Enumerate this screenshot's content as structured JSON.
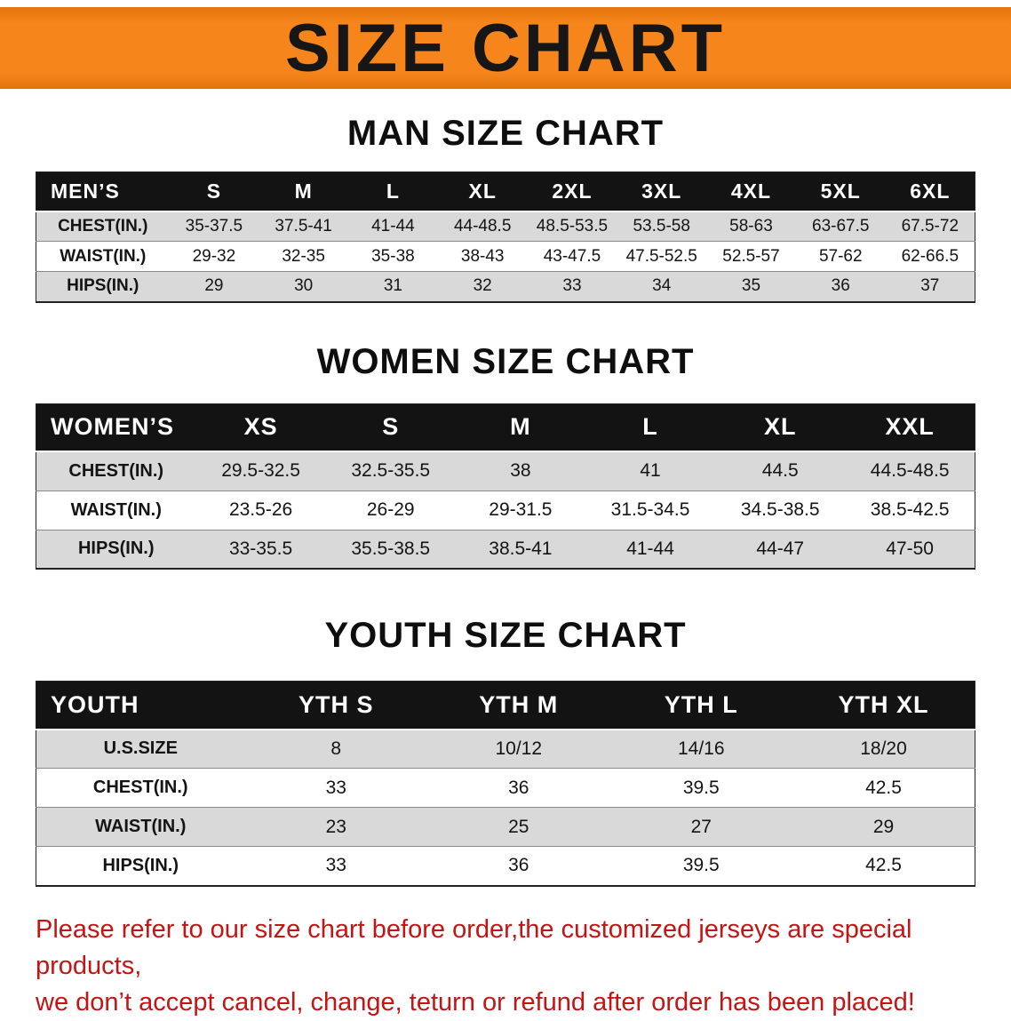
{
  "banner": {
    "title": "SIZE CHART"
  },
  "colors": {
    "banner_bg": "#F6861C",
    "header_bg": "#131313",
    "row_alt_bg": "#D9D9D9",
    "disclaimer_red": "#C41414"
  },
  "sections": [
    {
      "heading": "MAN SIZE CHART",
      "table": {
        "header": [
          "MEN’S",
          "S",
          "M",
          "L",
          "XL",
          "2XL",
          "3XL",
          "4XL",
          "5XL",
          "6XL"
        ],
        "rows": [
          [
            "CHEST(IN.)",
            "35-37.5",
            "37.5-41",
            "41-44",
            "44-48.5",
            "48.5-53.5",
            "53.5-58",
            "58-63",
            "63-67.5",
            "67.5-72"
          ],
          [
            "WAIST(IN.)",
            "29-32",
            "32-35",
            "35-38",
            "38-43",
            "43-47.5",
            "47.5-52.5",
            "52.5-57",
            "57-62",
            "62-66.5"
          ],
          [
            "HIPS(IN.)",
            "29",
            "30",
            "31",
            "32",
            "33",
            "34",
            "35",
            "36",
            "37"
          ]
        ]
      }
    },
    {
      "heading": "WOMEN SIZE CHART",
      "table": {
        "header": [
          "WOMEN’S",
          "XS",
          "S",
          "M",
          "L",
          "XL",
          "XXL"
        ],
        "rows": [
          [
            "CHEST(IN.)",
            "29.5-32.5",
            "32.5-35.5",
            "38",
            "41",
            "44.5",
            "44.5-48.5"
          ],
          [
            "WAIST(IN.)",
            "23.5-26",
            "26-29",
            "29-31.5",
            "31.5-34.5",
            "34.5-38.5",
            "38.5-42.5"
          ],
          [
            "HIPS(IN.)",
            "33-35.5",
            "35.5-38.5",
            "38.5-41",
            "41-44",
            "44-47",
            "47-50"
          ]
        ]
      }
    },
    {
      "heading": "YOUTH SIZE CHART",
      "table": {
        "header": [
          "YOUTH",
          "YTH S",
          "YTH M",
          "YTH L",
          "YTH XL"
        ],
        "rows": [
          [
            "U.S.SIZE",
            "8",
            "10/12",
            "14/16",
            "18/20"
          ],
          [
            "CHEST(IN.)",
            "33",
            "36",
            "39.5",
            "42.5"
          ],
          [
            "WAIST(IN.)",
            "23",
            "25",
            "27",
            "29"
          ],
          [
            "HIPS(IN.)",
            "33",
            "36",
            "39.5",
            "42.5"
          ]
        ]
      }
    }
  ],
  "disclaimer": {
    "line1": "Please refer to our size chart before order,the customized jerseys are special products,",
    "line2": "we don’t accept cancel, change, teturn or refund after order has been placed!"
  }
}
